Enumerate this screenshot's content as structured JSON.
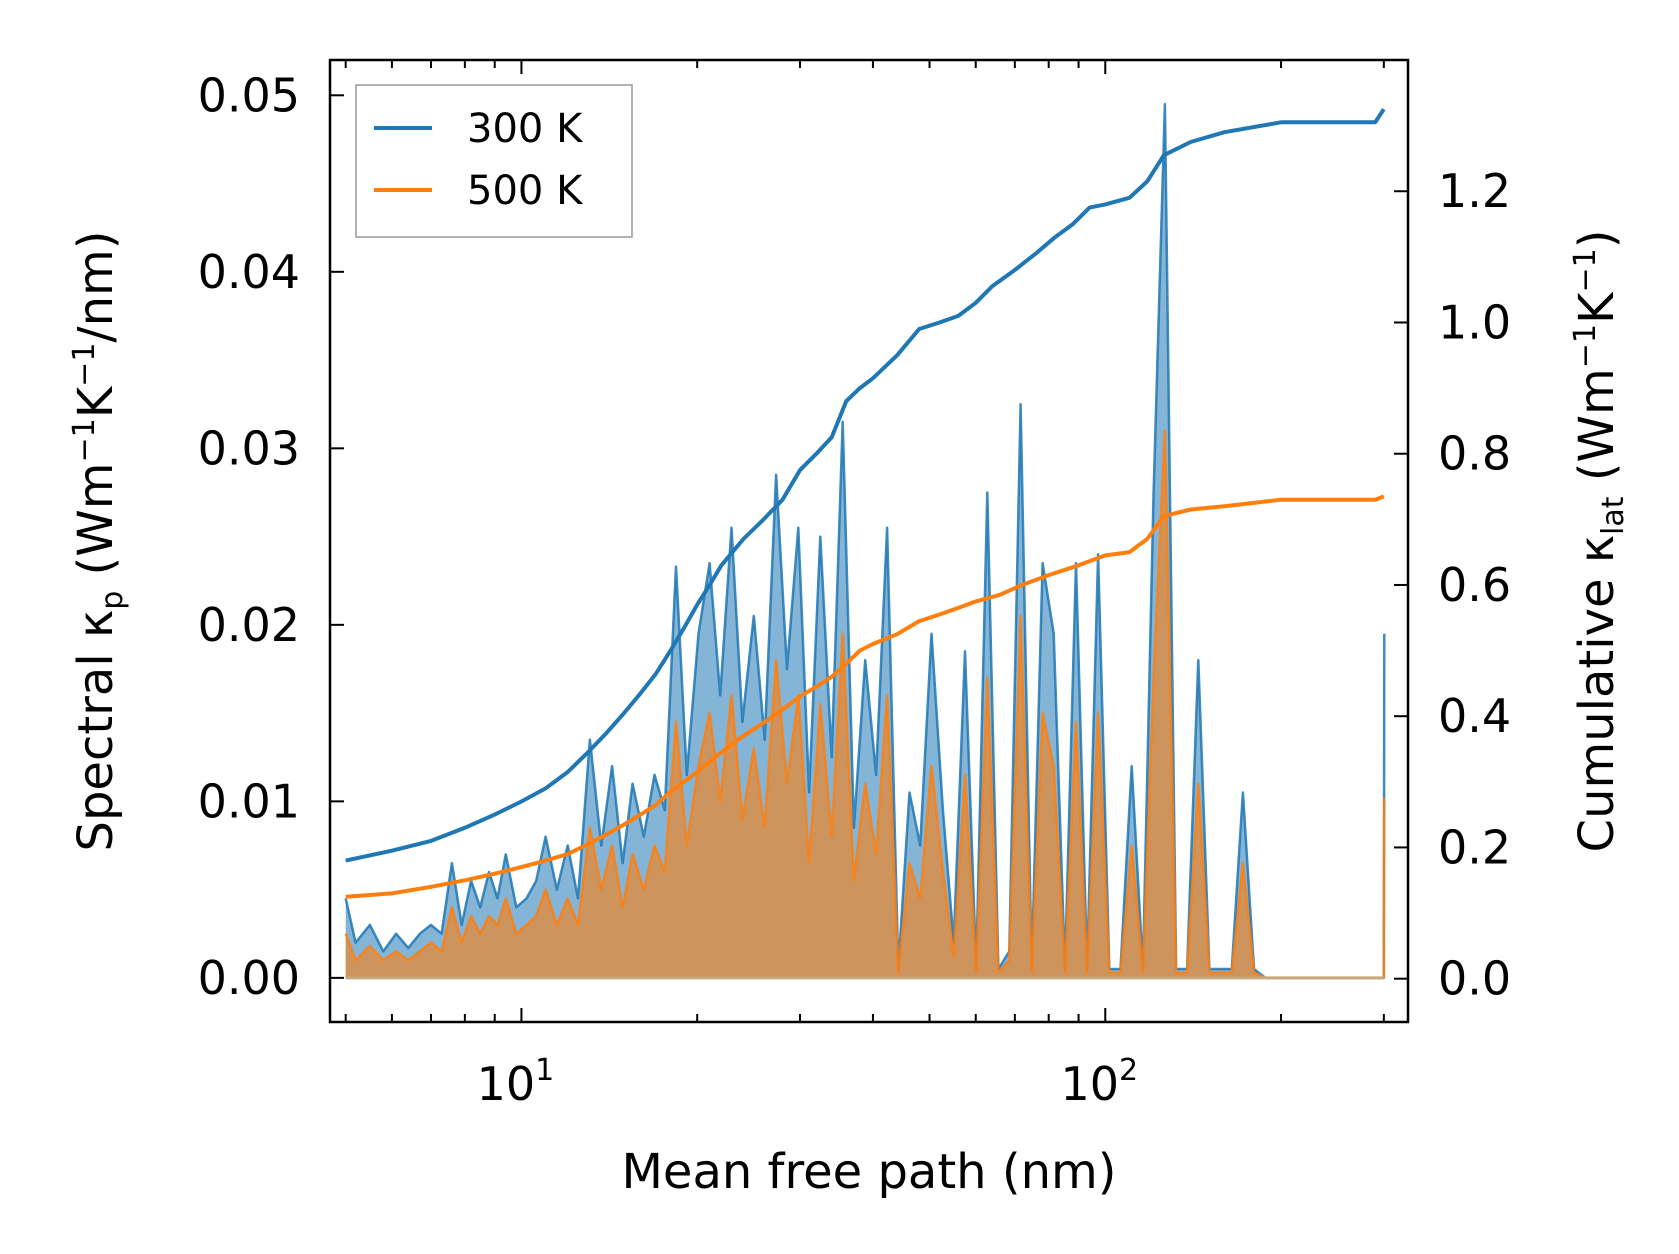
{
  "chart_data": {
    "type": "line",
    "title": "",
    "xlabel": "Mean free path (nm)",
    "x_scale": "log",
    "xlim": [
      4.7,
      330
    ],
    "x_ticks": [
      {
        "value": 10,
        "base": "10",
        "exp": "1"
      },
      {
        "value": 100,
        "base": "10",
        "exp": "2"
      }
    ],
    "ylabel_left": {
      "prefix": "Spectral κ",
      "sub": "p",
      "mid1": " (Wm",
      "sup1": "−1",
      "mid2": "K",
      "sup2": "−1",
      "suffix": "/nm)"
    },
    "ylabel_right": {
      "prefix": "Cumulative κ",
      "sub": "lat",
      "mid1": " (Wm",
      "sup1": "−1",
      "mid2": "K",
      "sup2": "−1",
      "suffix": ")"
    },
    "ylim_left": [
      -0.0025,
      0.052
    ],
    "ylim_right": [
      -0.066,
      1.4
    ],
    "left_ticks": [
      "0.00",
      "0.01",
      "0.02",
      "0.03",
      "0.04",
      "0.05"
    ],
    "left_tick_values": [
      0,
      0.01,
      0.02,
      0.03,
      0.04,
      0.05
    ],
    "right_ticks": [
      "0.0",
      "0.2",
      "0.4",
      "0.6",
      "0.8",
      "1.0",
      "1.2"
    ],
    "right_tick_values": [
      0,
      0.2,
      0.4,
      0.6,
      0.8,
      1.0,
      1.2
    ],
    "legend": {
      "position": "top-left",
      "entries": [
        "300 K",
        "500 K"
      ]
    },
    "colors": {
      "300 K": "#1f77b4",
      "500 K": "#ff7f0e"
    },
    "spectral_series": [
      {
        "name": "300 K spectral",
        "axis": "left",
        "color": "#1f77b4",
        "points": [
          [
            5.0,
            0.0045
          ],
          [
            5.2,
            0.002
          ],
          [
            5.5,
            0.003
          ],
          [
            5.8,
            0.0015
          ],
          [
            6.1,
            0.0025
          ],
          [
            6.4,
            0.0017
          ],
          [
            6.7,
            0.0025
          ],
          [
            7.0,
            0.003
          ],
          [
            7.3,
            0.0025
          ],
          [
            7.6,
            0.0065
          ],
          [
            7.9,
            0.003
          ],
          [
            8.2,
            0.0055
          ],
          [
            8.5,
            0.004
          ],
          [
            8.8,
            0.006
          ],
          [
            9.1,
            0.0045
          ],
          [
            9.4,
            0.007
          ],
          [
            9.8,
            0.004
          ],
          [
            10.2,
            0.0045
          ],
          [
            10.6,
            0.0055
          ],
          [
            11.0,
            0.008
          ],
          [
            11.5,
            0.005
          ],
          [
            12.0,
            0.0075
          ],
          [
            12.5,
            0.0045
          ],
          [
            13.1,
            0.0135
          ],
          [
            13.7,
            0.0075
          ],
          [
            14.3,
            0.012
          ],
          [
            14.9,
            0.0065
          ],
          [
            15.5,
            0.011
          ],
          [
            16.2,
            0.008
          ],
          [
            16.9,
            0.0115
          ],
          [
            17.6,
            0.0095
          ],
          [
            18.4,
            0.0233
          ],
          [
            19.2,
            0.0115
          ],
          [
            20.1,
            0.0195
          ],
          [
            21.0,
            0.0235
          ],
          [
            21.9,
            0.016
          ],
          [
            22.9,
            0.0255
          ],
          [
            23.9,
            0.0145
          ],
          [
            25.0,
            0.0205
          ],
          [
            26.1,
            0.0135
          ],
          [
            27.3,
            0.0285
          ],
          [
            28.5,
            0.0175
          ],
          [
            29.8,
            0.0255
          ],
          [
            31.1,
            0.0105
          ],
          [
            32.5,
            0.025
          ],
          [
            34.0,
            0.0125
          ],
          [
            35.5,
            0.0315
          ],
          [
            37.1,
            0.0085
          ],
          [
            38.8,
            0.018
          ],
          [
            40.5,
            0.0115
          ],
          [
            42.3,
            0.0255
          ],
          [
            44.2,
            0.0005
          ],
          [
            46.2,
            0.0105
          ],
          [
            48.2,
            0.0075
          ],
          [
            50.4,
            0.0195
          ],
          [
            52.7,
            0.0095
          ],
          [
            55.0,
            0.002
          ],
          [
            57.5,
            0.0185
          ],
          [
            60.1,
            0.0005
          ],
          [
            62.8,
            0.0275
          ],
          [
            65.6,
            0.0005
          ],
          [
            68.5,
            0.0015
          ],
          [
            71.6,
            0.0325
          ],
          [
            74.8,
            0.0005
          ],
          [
            78.1,
            0.0235
          ],
          [
            81.6,
            0.0195
          ],
          [
            85.3,
            0.0005
          ],
          [
            89.1,
            0.0235
          ],
          [
            93.1,
            0.0005
          ],
          [
            97.2,
            0.024
          ],
          [
            101.6,
            0.0005
          ],
          [
            106.2,
            0.0005
          ],
          [
            111.0,
            0.012
          ],
          [
            116.0,
            0.0005
          ],
          [
            121.0,
            0.0275
          ],
          [
            126.5,
            0.0495
          ],
          [
            132.2,
            0.0005
          ],
          [
            138.1,
            0.0005
          ],
          [
            144.3,
            0.018
          ],
          [
            150.8,
            0.0005
          ],
          [
            157.6,
            0.0005
          ],
          [
            164.7,
            0.0005
          ],
          [
            172.1,
            0.0105
          ],
          [
            179.8,
            0.0005
          ],
          [
            188.0,
            0.0
          ],
          [
            300.0,
            0.0
          ],
          [
            300.5,
            0.0195
          ]
        ]
      },
      {
        "name": "500 K spectral",
        "axis": "left",
        "color": "#ff7f0e",
        "points": [
          [
            5.0,
            0.0025
          ],
          [
            5.2,
            0.001
          ],
          [
            5.5,
            0.0018
          ],
          [
            5.8,
            0.001
          ],
          [
            6.1,
            0.0015
          ],
          [
            6.4,
            0.001
          ],
          [
            6.7,
            0.0015
          ],
          [
            7.0,
            0.002
          ],
          [
            7.3,
            0.0015
          ],
          [
            7.6,
            0.004
          ],
          [
            7.9,
            0.002
          ],
          [
            8.2,
            0.0035
          ],
          [
            8.5,
            0.0025
          ],
          [
            8.8,
            0.0035
          ],
          [
            9.1,
            0.003
          ],
          [
            9.4,
            0.0045
          ],
          [
            9.8,
            0.0025
          ],
          [
            10.2,
            0.003
          ],
          [
            10.6,
            0.0035
          ],
          [
            11.0,
            0.005
          ],
          [
            11.5,
            0.003
          ],
          [
            12.0,
            0.0045
          ],
          [
            12.5,
            0.003
          ],
          [
            13.1,
            0.0085
          ],
          [
            13.7,
            0.005
          ],
          [
            14.3,
            0.0075
          ],
          [
            14.9,
            0.004
          ],
          [
            15.5,
            0.007
          ],
          [
            16.2,
            0.005
          ],
          [
            16.9,
            0.0075
          ],
          [
            17.6,
            0.006
          ],
          [
            18.4,
            0.0145
          ],
          [
            19.2,
            0.0075
          ],
          [
            20.1,
            0.012
          ],
          [
            21.0,
            0.015
          ],
          [
            21.9,
            0.01
          ],
          [
            22.9,
            0.016
          ],
          [
            23.9,
            0.009
          ],
          [
            25.0,
            0.013
          ],
          [
            26.1,
            0.0085
          ],
          [
            27.3,
            0.018
          ],
          [
            28.5,
            0.011
          ],
          [
            29.8,
            0.016
          ],
          [
            31.1,
            0.0065
          ],
          [
            32.5,
            0.0155
          ],
          [
            34.0,
            0.008
          ],
          [
            35.5,
            0.0195
          ],
          [
            37.1,
            0.0055
          ],
          [
            38.8,
            0.011
          ],
          [
            40.5,
            0.007
          ],
          [
            42.3,
            0.016
          ],
          [
            44.2,
            0.0003
          ],
          [
            46.2,
            0.0065
          ],
          [
            48.2,
            0.0045
          ],
          [
            50.4,
            0.012
          ],
          [
            52.7,
            0.006
          ],
          [
            55.0,
            0.0012
          ],
          [
            57.5,
            0.0115
          ],
          [
            60.1,
            0.0003
          ],
          [
            62.8,
            0.017
          ],
          [
            65.6,
            0.0003
          ],
          [
            68.5,
            0.001
          ],
          [
            71.6,
            0.0205
          ],
          [
            74.8,
            0.0003
          ],
          [
            78.1,
            0.015
          ],
          [
            81.6,
            0.012
          ],
          [
            85.3,
            0.0003
          ],
          [
            89.1,
            0.0145
          ],
          [
            93.1,
            0.0003
          ],
          [
            97.2,
            0.015
          ],
          [
            101.6,
            0.0003
          ],
          [
            106.2,
            0.0003
          ],
          [
            111.0,
            0.0075
          ],
          [
            116.0,
            0.0003
          ],
          [
            121.0,
            0.017
          ],
          [
            126.5,
            0.031
          ],
          [
            132.2,
            0.0003
          ],
          [
            138.1,
            0.0003
          ],
          [
            144.3,
            0.011
          ],
          [
            150.8,
            0.0003
          ],
          [
            157.6,
            0.0003
          ],
          [
            164.7,
            0.0003
          ],
          [
            172.1,
            0.0065
          ],
          [
            179.8,
            0.0003
          ],
          [
            188.0,
            0.0
          ],
          [
            300.0,
            0.0
          ],
          [
            300.5,
            0.0102
          ]
        ]
      }
    ],
    "cumulative_series": [
      {
        "name": "300 K",
        "axis": "right",
        "color": "#1f77b4",
        "points": [
          [
            5.0,
            0.18
          ],
          [
            6.0,
            0.195
          ],
          [
            7.0,
            0.21
          ],
          [
            8.0,
            0.23
          ],
          [
            9.0,
            0.25
          ],
          [
            10.0,
            0.27
          ],
          [
            11.0,
            0.29
          ],
          [
            12.0,
            0.315
          ],
          [
            13.0,
            0.345
          ],
          [
            14.0,
            0.375
          ],
          [
            15.0,
            0.405
          ],
          [
            16.0,
            0.435
          ],
          [
            17.0,
            0.465
          ],
          [
            18.0,
            0.5
          ],
          [
            19.0,
            0.535
          ],
          [
            20.0,
            0.57
          ],
          [
            21.0,
            0.6
          ],
          [
            22.0,
            0.63
          ],
          [
            24.0,
            0.67
          ],
          [
            26.0,
            0.7
          ],
          [
            28.0,
            0.73
          ],
          [
            30.0,
            0.775
          ],
          [
            32.0,
            0.8
          ],
          [
            34.0,
            0.825
          ],
          [
            36.0,
            0.88
          ],
          [
            38.0,
            0.9
          ],
          [
            40.0,
            0.915
          ],
          [
            44.0,
            0.95
          ],
          [
            48.0,
            0.99
          ],
          [
            52.0,
            1.0
          ],
          [
            56.0,
            1.01
          ],
          [
            60.0,
            1.03
          ],
          [
            64.0,
            1.055
          ],
          [
            70.0,
            1.08
          ],
          [
            76.0,
            1.105
          ],
          [
            82.0,
            1.13
          ],
          [
            88.0,
            1.15
          ],
          [
            94.0,
            1.175
          ],
          [
            100.0,
            1.18
          ],
          [
            110.0,
            1.19
          ],
          [
            118.0,
            1.215
          ],
          [
            126.0,
            1.255
          ],
          [
            140.0,
            1.275
          ],
          [
            160.0,
            1.29
          ],
          [
            200.0,
            1.305
          ],
          [
            290.0,
            1.305
          ],
          [
            300.0,
            1.325
          ]
        ]
      },
      {
        "name": "500 K",
        "axis": "right",
        "color": "#ff7f0e",
        "points": [
          [
            5.0,
            0.125
          ],
          [
            6.0,
            0.13
          ],
          [
            7.0,
            0.14
          ],
          [
            8.0,
            0.15
          ],
          [
            9.0,
            0.16
          ],
          [
            10.0,
            0.17
          ],
          [
            11.0,
            0.18
          ],
          [
            12.0,
            0.19
          ],
          [
            13.0,
            0.205
          ],
          [
            14.0,
            0.22
          ],
          [
            15.0,
            0.235
          ],
          [
            16.0,
            0.25
          ],
          [
            17.0,
            0.265
          ],
          [
            18.0,
            0.285
          ],
          [
            19.0,
            0.3
          ],
          [
            20.0,
            0.315
          ],
          [
            21.0,
            0.33
          ],
          [
            22.0,
            0.345
          ],
          [
            24.0,
            0.37
          ],
          [
            26.0,
            0.39
          ],
          [
            28.0,
            0.41
          ],
          [
            30.0,
            0.43
          ],
          [
            32.0,
            0.445
          ],
          [
            34.0,
            0.46
          ],
          [
            36.0,
            0.48
          ],
          [
            38.0,
            0.5
          ],
          [
            40.0,
            0.51
          ],
          [
            44.0,
            0.525
          ],
          [
            48.0,
            0.545
          ],
          [
            52.0,
            0.555
          ],
          [
            56.0,
            0.565
          ],
          [
            60.0,
            0.575
          ],
          [
            66.0,
            0.585
          ],
          [
            72.0,
            0.6
          ],
          [
            80.0,
            0.615
          ],
          [
            90.0,
            0.63
          ],
          [
            100.0,
            0.645
          ],
          [
            110.0,
            0.65
          ],
          [
            118.0,
            0.67
          ],
          [
            126.0,
            0.705
          ],
          [
            140.0,
            0.715
          ],
          [
            160.0,
            0.72
          ],
          [
            200.0,
            0.73
          ],
          [
            290.0,
            0.73
          ],
          [
            300.0,
            0.735
          ]
        ]
      }
    ]
  }
}
